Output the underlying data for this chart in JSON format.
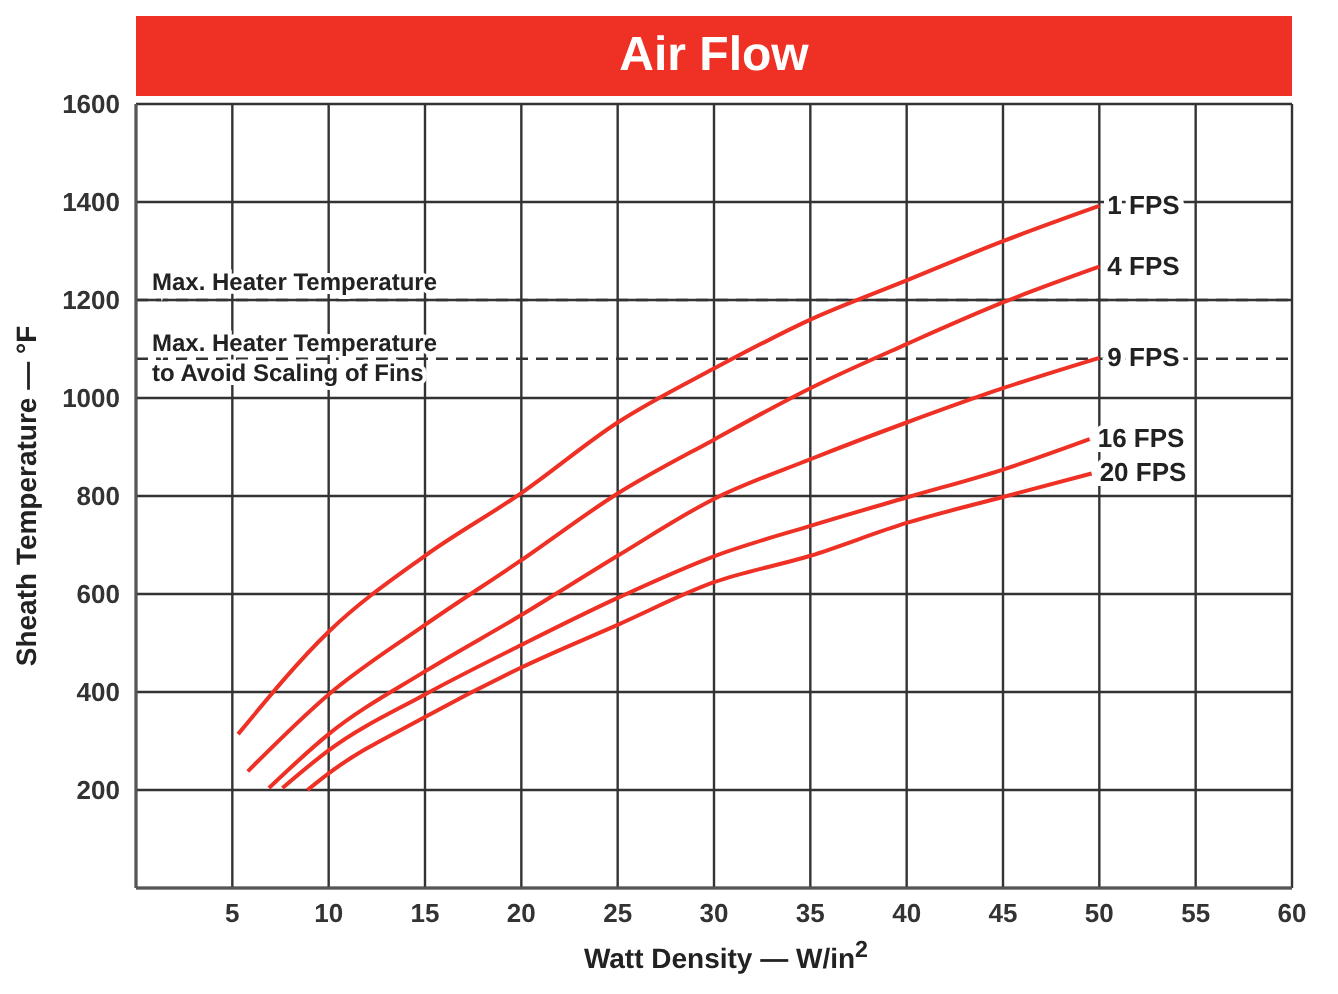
{
  "chart_data": {
    "type": "line",
    "title": "Air Flow",
    "xlabel": "Watt Density — W/in$^{2}$",
    "ylabel": "Sheath Temperature — °F",
    "xlim": [
      0,
      60
    ],
    "xticks": [
      5,
      10,
      15,
      20,
      25,
      30,
      35,
      40,
      45,
      50,
      55,
      60
    ],
    "ylim": [
      0,
      1600
    ],
    "yticks": [
      200,
      400,
      600,
      800,
      1000,
      1200,
      1400,
      1600
    ],
    "grid": true,
    "marker": "none",
    "line_style": "solid",
    "ref_lines": [
      {
        "axis": "y",
        "value": 1200,
        "label": "Max. Heater Temperature",
        "color": "#333333",
        "line_style": "dashed"
      },
      {
        "axis": "y",
        "value": 1080,
        "label": "Max. Heater Temperature\nto Avoid Scaling of Fins",
        "color": "#333333",
        "line_style": "dashed"
      }
    ],
    "series": [
      {
        "name": "1 FPS",
        "color": "#ee3124",
        "x": [
          5.3,
          10,
          15,
          20,
          25,
          30,
          35,
          40,
          45,
          50
        ],
        "values": [
          314,
          523,
          678,
          806,
          950,
          1060,
          1160,
          1240,
          1320,
          1392
        ]
      },
      {
        "name": "4 FPS",
        "color": "#ee3124",
        "x": [
          5.8,
          10,
          15,
          20,
          25,
          30,
          35,
          40,
          45,
          50
        ],
        "values": [
          238,
          395,
          537,
          669,
          805,
          915,
          1020,
          1110,
          1195,
          1268
        ]
      },
      {
        "name": "9 FPS",
        "color": "#ee3124",
        "x": [
          6.9,
          10,
          15,
          20,
          25,
          30,
          35,
          40,
          45,
          50
        ],
        "values": [
          204,
          314,
          442,
          557,
          678,
          794,
          875,
          950,
          1020,
          1082
        ]
      },
      {
        "name": "16 FPS",
        "color": "#ee3124",
        "x": [
          7.6,
          10,
          15,
          20,
          25,
          30,
          35,
          40,
          45,
          49.5
        ],
        "values": [
          204,
          281,
          395,
          496,
          592,
          677,
          739,
          797,
          854,
          916
        ]
      },
      {
        "name": "20 FPS",
        "color": "#ee3124",
        "x": [
          8.9,
          10,
          15,
          20,
          25,
          30,
          35,
          40,
          45,
          49.6
        ],
        "values": [
          200,
          234,
          349,
          450,
          537,
          624,
          678,
          745,
          798,
          846
        ]
      }
    ]
  }
}
